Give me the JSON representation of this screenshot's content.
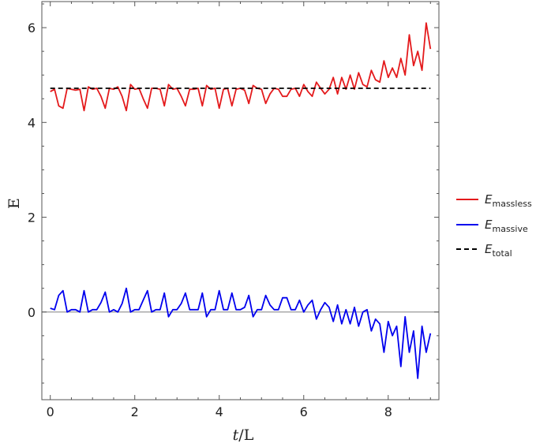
{
  "chart_data": {
    "type": "line",
    "title": "",
    "xlabel": {
      "var": "t",
      "rest": "/L"
    },
    "ylabel": "E",
    "xlim": [
      -0.2,
      9.2
    ],
    "ylim": [
      -1.85,
      6.55
    ],
    "xticks": [
      0,
      2,
      4,
      6,
      8
    ],
    "yticks": [
      0,
      2,
      4,
      6
    ],
    "grid": false,
    "reference_line": {
      "y": 0,
      "color": "#999999"
    },
    "legend_position": "right",
    "series": [
      {
        "name": "massless",
        "legend_main": "E",
        "legend_sub": "massless",
        "color": "#e41a1c",
        "style": "solid",
        "x": [
          0,
          0.1,
          0.2,
          0.3,
          0.4,
          0.5,
          0.6,
          0.7,
          0.8,
          0.9,
          1.0,
          1.1,
          1.2,
          1.3,
          1.4,
          1.5,
          1.6,
          1.7,
          1.8,
          1.9,
          2.0,
          2.1,
          2.2,
          2.3,
          2.4,
          2.5,
          2.6,
          2.7,
          2.8,
          2.9,
          3.0,
          3.1,
          3.2,
          3.3,
          3.4,
          3.5,
          3.6,
          3.7,
          3.8,
          3.9,
          4.0,
          4.1,
          4.2,
          4.3,
          4.4,
          4.5,
          4.6,
          4.7,
          4.8,
          4.9,
          5.0,
          5.1,
          5.2,
          5.3,
          5.4,
          5.5,
          5.6,
          5.7,
          5.8,
          5.9,
          6.0,
          6.1,
          6.2,
          6.3,
          6.4,
          6.5,
          6.6,
          6.7,
          6.8,
          6.9,
          7.0,
          7.1,
          7.2,
          7.3,
          7.4,
          7.5,
          7.6,
          7.7,
          7.8,
          7.9,
          8.0,
          8.1,
          8.2,
          8.3,
          8.4,
          8.5,
          8.6,
          8.7,
          8.8,
          8.9,
          9.0
        ],
        "y": [
          4.65,
          4.7,
          4.35,
          4.3,
          4.72,
          4.7,
          4.68,
          4.7,
          4.25,
          4.75,
          4.7,
          4.72,
          4.55,
          4.3,
          4.72,
          4.7,
          4.75,
          4.55,
          4.25,
          4.8,
          4.7,
          4.72,
          4.5,
          4.3,
          4.72,
          4.72,
          4.7,
          4.35,
          4.8,
          4.7,
          4.72,
          4.55,
          4.35,
          4.7,
          4.7,
          4.72,
          4.35,
          4.78,
          4.7,
          4.72,
          4.3,
          4.7,
          4.72,
          4.35,
          4.7,
          4.72,
          4.68,
          4.4,
          4.78,
          4.72,
          4.7,
          4.4,
          4.6,
          4.72,
          4.7,
          4.55,
          4.55,
          4.7,
          4.72,
          4.55,
          4.8,
          4.65,
          4.55,
          4.85,
          4.72,
          4.6,
          4.7,
          4.95,
          4.6,
          4.95,
          4.7,
          5.0,
          4.7,
          5.05,
          4.8,
          4.75,
          5.1,
          4.9,
          4.85,
          5.3,
          4.95,
          5.15,
          4.95,
          5.35,
          5.0,
          5.85,
          5.2,
          5.5,
          5.1,
          6.1,
          5.55
        ]
      },
      {
        "name": "massive",
        "legend_main": "E",
        "legend_sub": "massive",
        "color": "#0000ee",
        "style": "solid",
        "x": [
          0,
          0.1,
          0.2,
          0.3,
          0.4,
          0.5,
          0.6,
          0.7,
          0.8,
          0.9,
          1.0,
          1.1,
          1.2,
          1.3,
          1.4,
          1.5,
          1.6,
          1.7,
          1.8,
          1.9,
          2.0,
          2.1,
          2.2,
          2.3,
          2.4,
          2.5,
          2.6,
          2.7,
          2.8,
          2.9,
          3.0,
          3.1,
          3.2,
          3.3,
          3.4,
          3.5,
          3.6,
          3.7,
          3.8,
          3.9,
          4.0,
          4.1,
          4.2,
          4.3,
          4.4,
          4.5,
          4.6,
          4.7,
          4.8,
          4.9,
          5.0,
          5.1,
          5.2,
          5.3,
          5.4,
          5.5,
          5.6,
          5.7,
          5.8,
          5.9,
          6.0,
          6.1,
          6.2,
          6.3,
          6.4,
          6.5,
          6.6,
          6.7,
          6.8,
          6.9,
          7.0,
          7.1,
          7.2,
          7.3,
          7.4,
          7.5,
          7.6,
          7.7,
          7.8,
          7.9,
          8.0,
          8.1,
          8.2,
          8.3,
          8.4,
          8.5,
          8.6,
          8.7,
          8.8,
          8.9,
          9.0
        ],
        "y": [
          0.08,
          0.05,
          0.35,
          0.45,
          0.0,
          0.05,
          0.05,
          0.0,
          0.45,
          0.0,
          0.05,
          0.05,
          0.2,
          0.42,
          0.0,
          0.05,
          0.0,
          0.18,
          0.5,
          0.0,
          0.05,
          0.05,
          0.25,
          0.45,
          0.0,
          0.05,
          0.05,
          0.4,
          -0.1,
          0.05,
          0.05,
          0.18,
          0.4,
          0.05,
          0.05,
          0.05,
          0.4,
          -0.1,
          0.05,
          0.05,
          0.45,
          0.05,
          0.05,
          0.4,
          0.05,
          0.05,
          0.1,
          0.35,
          -0.1,
          0.05,
          0.05,
          0.35,
          0.15,
          0.05,
          0.05,
          0.3,
          0.3,
          0.05,
          0.05,
          0.25,
          0.0,
          0.15,
          0.25,
          -0.15,
          0.05,
          0.2,
          0.1,
          -0.2,
          0.15,
          -0.25,
          0.05,
          -0.25,
          0.1,
          -0.3,
          0.0,
          0.05,
          -0.4,
          -0.15,
          -0.25,
          -0.85,
          -0.2,
          -0.5,
          -0.3,
          -1.15,
          -0.1,
          -0.85,
          -0.4,
          -1.4,
          -0.3,
          -0.85,
          -0.45
        ]
      },
      {
        "name": "total",
        "legend_main": "E",
        "legend_sub": "total",
        "color": "#000000",
        "style": "dashed",
        "x": [
          0,
          9.0
        ],
        "y": [
          4.72,
          4.72
        ]
      }
    ]
  }
}
